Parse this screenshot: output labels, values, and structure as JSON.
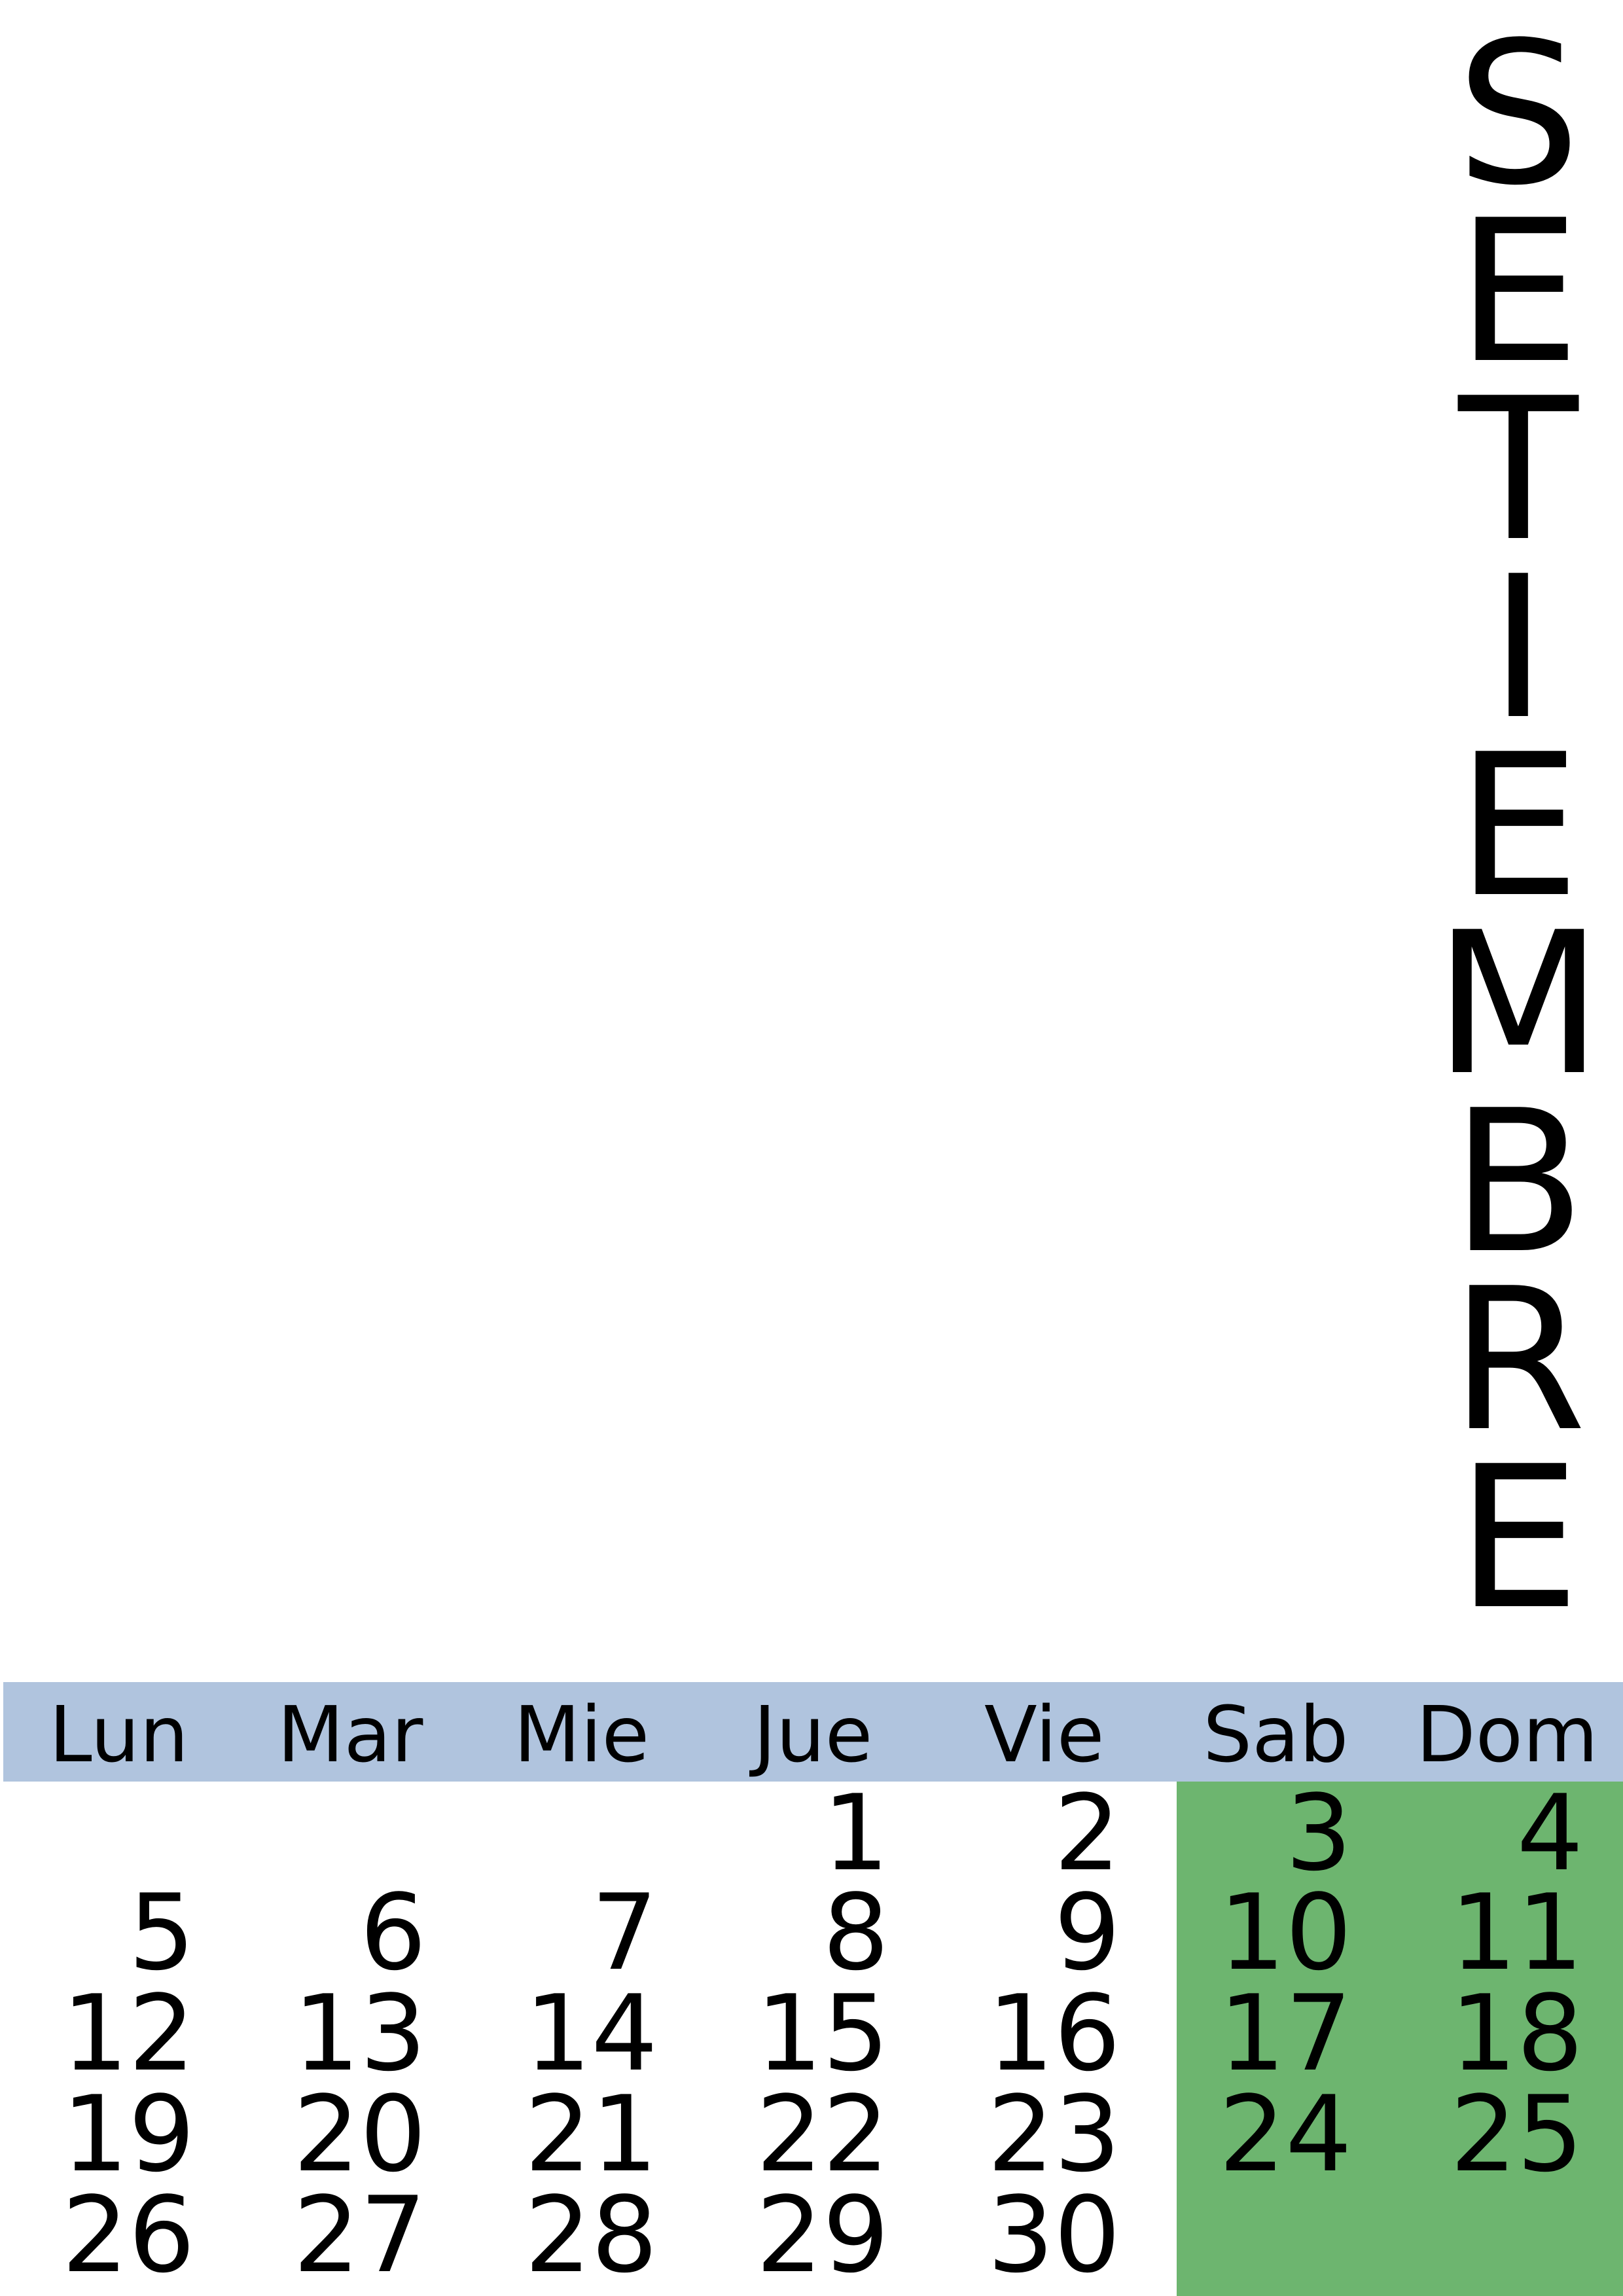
{
  "month_title": "SETIEMBRE",
  "header_color": "#b0c4de",
  "weekend_color": "#6db56f",
  "day_names": [
    "Lun",
    "Mar",
    "Mie",
    "Jue",
    "Vie",
    "Sab",
    "Dom"
  ],
  "weeks": [
    [
      "",
      "",
      "",
      "1",
      "2",
      "3",
      "4"
    ],
    [
      "5",
      "6",
      "7",
      "8",
      "9",
      "10",
      "11"
    ],
    [
      "12",
      "13",
      "14",
      "15",
      "16",
      "17",
      "18"
    ],
    [
      "19",
      "20",
      "21",
      "22",
      "23",
      "24",
      "25"
    ],
    [
      "26",
      "27",
      "28",
      "29",
      "30",
      "",
      ""
    ]
  ]
}
